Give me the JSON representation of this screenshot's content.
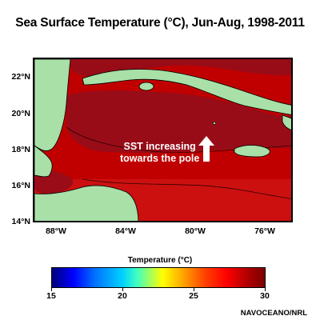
{
  "title": "Sea Surface Temperature (°C), Jun-Aug, 1998-2011",
  "annotation": {
    "line1": "SST increasing",
    "line2": "towards the pole"
  },
  "map": {
    "lat_labels": [
      "22°N",
      "20°N",
      "18°N",
      "16°N",
      "14°N"
    ],
    "lon_labels": [
      "88°W",
      "84°W",
      "80°W",
      "76°W"
    ],
    "colors": {
      "land": "#a8e0a8",
      "sea_warm": "#c00000",
      "sea_warmer": "#8b0a14"
    }
  },
  "colorbar": {
    "title": "Temperature (°C)",
    "labels": [
      "15",
      "20",
      "25",
      "30"
    ],
    "min": 15,
    "max": 30
  },
  "credit": "NAVOCEANO/NRL"
}
